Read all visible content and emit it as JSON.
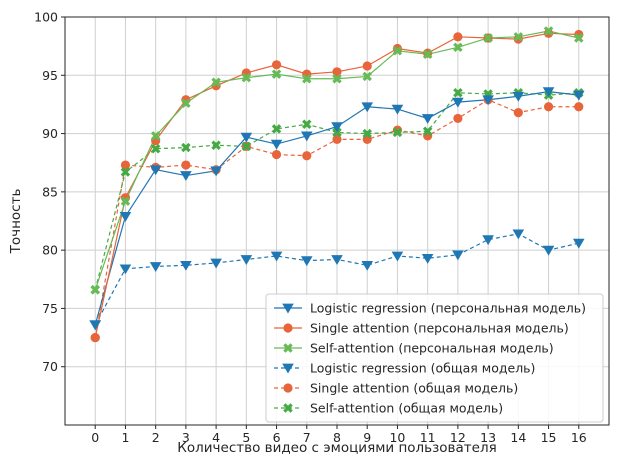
{
  "chart_data": {
    "type": "line",
    "xlabel": "Количество видео с эмоциями пользователя",
    "ylabel": "Точность",
    "x": [
      0,
      1,
      2,
      3,
      4,
      5,
      6,
      7,
      8,
      9,
      10,
      11,
      12,
      13,
      14,
      15,
      16
    ],
    "xlim": [
      -1,
      17
    ],
    "ylim": [
      65,
      100
    ],
    "xticks": [
      0,
      1,
      2,
      3,
      4,
      5,
      6,
      7,
      8,
      9,
      10,
      11,
      12,
      13,
      14,
      15,
      16
    ],
    "yticks": [
      70,
      75,
      80,
      85,
      90,
      95,
      100
    ],
    "grid": true,
    "legend_position": "lower-right",
    "series": [
      {
        "name": "Logistic regression (персональная модель)",
        "color": "#1f77b4",
        "linestyle": "solid",
        "marker": "triangle-down",
        "values": [
          73.6,
          82.9,
          86.9,
          86.4,
          86.8,
          89.7,
          89.1,
          89.8,
          90.6,
          92.3,
          92.1,
          91.3,
          92.7,
          92.9,
          93.2,
          93.6,
          93.3
        ]
      },
      {
        "name": "Single attention (персональная модель)",
        "color": "#e8643a",
        "linestyle": "solid",
        "marker": "circle",
        "values": [
          72.5,
          84.5,
          89.4,
          92.9,
          94.1,
          95.2,
          95.9,
          95.1,
          95.3,
          95.8,
          97.3,
          96.9,
          98.3,
          98.2,
          98.1,
          98.6,
          98.5
        ]
      },
      {
        "name": "Self-attention (персональная модель)",
        "color": "#66bb55",
        "linestyle": "solid",
        "marker": "x",
        "values": [
          76.6,
          84.2,
          89.8,
          92.6,
          94.4,
          94.8,
          95.1,
          94.7,
          94.7,
          94.9,
          97.1,
          96.8,
          97.4,
          98.2,
          98.3,
          98.8,
          98.2
        ]
      },
      {
        "name": "Logistic regression (общая модель)",
        "color": "#1f77b4",
        "linestyle": "dashed",
        "marker": "triangle-down",
        "values": [
          73.6,
          78.4,
          78.6,
          78.7,
          78.9,
          79.2,
          79.5,
          79.1,
          79.2,
          78.7,
          79.5,
          79.3,
          79.6,
          80.9,
          81.4,
          80.0,
          80.6
        ]
      },
      {
        "name": "Single attention (общая модель)",
        "color": "#e8643a",
        "linestyle": "dashed",
        "marker": "circle",
        "values": [
          72.5,
          87.3,
          87.1,
          87.3,
          86.9,
          88.9,
          88.2,
          88.1,
          89.5,
          89.5,
          90.3,
          89.8,
          91.3,
          92.9,
          91.8,
          92.3,
          92.3
        ]
      },
      {
        "name": "Self-attention (общая модель)",
        "color": "#44aa44",
        "linestyle": "dashed",
        "marker": "x",
        "values": [
          76.6,
          86.7,
          88.7,
          88.8,
          89.0,
          88.9,
          90.4,
          90.8,
          90.1,
          90.0,
          90.1,
          90.2,
          93.5,
          93.4,
          93.5,
          93.3,
          93.5
        ]
      }
    ]
  }
}
